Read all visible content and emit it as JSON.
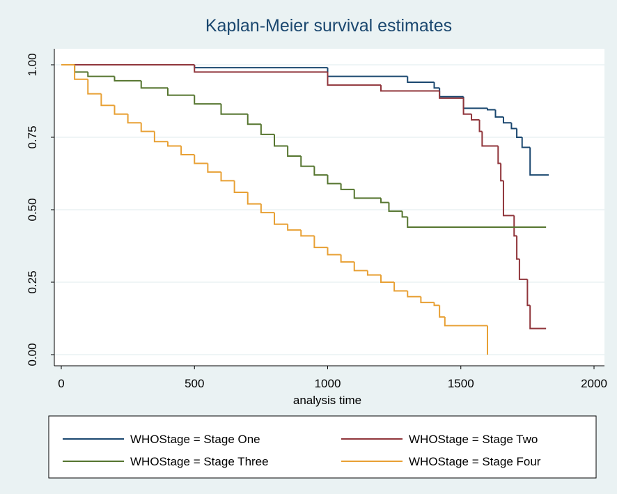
{
  "chart_data": {
    "type": "step-line",
    "title": "Kaplan-Meier survival estimates",
    "x_label": "analysis time",
    "xlim": [
      0,
      2000
    ],
    "xticks": [
      0,
      500,
      1000,
      1500,
      2000
    ],
    "ylim": [
      0,
      1
    ],
    "yticks": [
      {
        "value": 0,
        "label": "0.00"
      },
      {
        "value": 0.25,
        "label": "0.25"
      },
      {
        "value": 0.5,
        "label": "0.50"
      },
      {
        "value": 0.75,
        "label": "0.75"
      },
      {
        "value": 1,
        "label": "1.00"
      }
    ],
    "grid": true,
    "series": [
      {
        "name": "WHOStage = Stage One",
        "color": "#1a476f",
        "x": [
          0,
          500,
          1000,
          1300,
          1400,
          1420,
          1510,
          1600,
          1630,
          1660,
          1690,
          1710,
          1730,
          1760,
          1830
        ],
        "values": [
          1,
          0.99,
          0.96,
          0.94,
          0.92,
          0.89,
          0.85,
          0.845,
          0.82,
          0.8,
          0.78,
          0.75,
          0.715,
          0.62,
          0.62
        ]
      },
      {
        "name": "WHOStage = Stage Two",
        "color": "#90353b",
        "x": [
          0,
          500,
          1000,
          1200,
          1420,
          1510,
          1540,
          1570,
          1580,
          1640,
          1650,
          1660,
          1700,
          1710,
          1720,
          1750,
          1760,
          1820
        ],
        "values": [
          1,
          0.975,
          0.93,
          0.91,
          0.885,
          0.83,
          0.81,
          0.77,
          0.72,
          0.66,
          0.6,
          0.48,
          0.41,
          0.33,
          0.26,
          0.17,
          0.09,
          0.09
        ]
      },
      {
        "name": "WHOStage = Stage Three",
        "color": "#55752f",
        "x": [
          0,
          50,
          100,
          200,
          300,
          400,
          500,
          600,
          700,
          750,
          800,
          850,
          900,
          950,
          1000,
          1050,
          1100,
          1200,
          1230,
          1280,
          1300,
          1820
        ],
        "values": [
          1,
          0.975,
          0.96,
          0.945,
          0.92,
          0.895,
          0.865,
          0.83,
          0.795,
          0.76,
          0.72,
          0.685,
          0.65,
          0.62,
          0.59,
          0.57,
          0.54,
          0.525,
          0.495,
          0.475,
          0.44,
          0.44
        ]
      },
      {
        "name": "WHOStage = Stage Four",
        "color": "#e8a034",
        "x": [
          0,
          50,
          100,
          150,
          200,
          250,
          300,
          350,
          400,
          450,
          500,
          550,
          600,
          650,
          700,
          750,
          800,
          850,
          900,
          950,
          1000,
          1050,
          1100,
          1150,
          1200,
          1250,
          1300,
          1350,
          1400,
          1420,
          1440,
          1600
        ],
        "values": [
          1,
          0.95,
          0.9,
          0.86,
          0.83,
          0.8,
          0.77,
          0.735,
          0.72,
          0.69,
          0.66,
          0.63,
          0.6,
          0.56,
          0.52,
          0.49,
          0.45,
          0.43,
          0.41,
          0.37,
          0.345,
          0.32,
          0.29,
          0.275,
          0.25,
          0.22,
          0.2,
          0.18,
          0.17,
          0.13,
          0.1,
          0
        ]
      }
    ]
  }
}
